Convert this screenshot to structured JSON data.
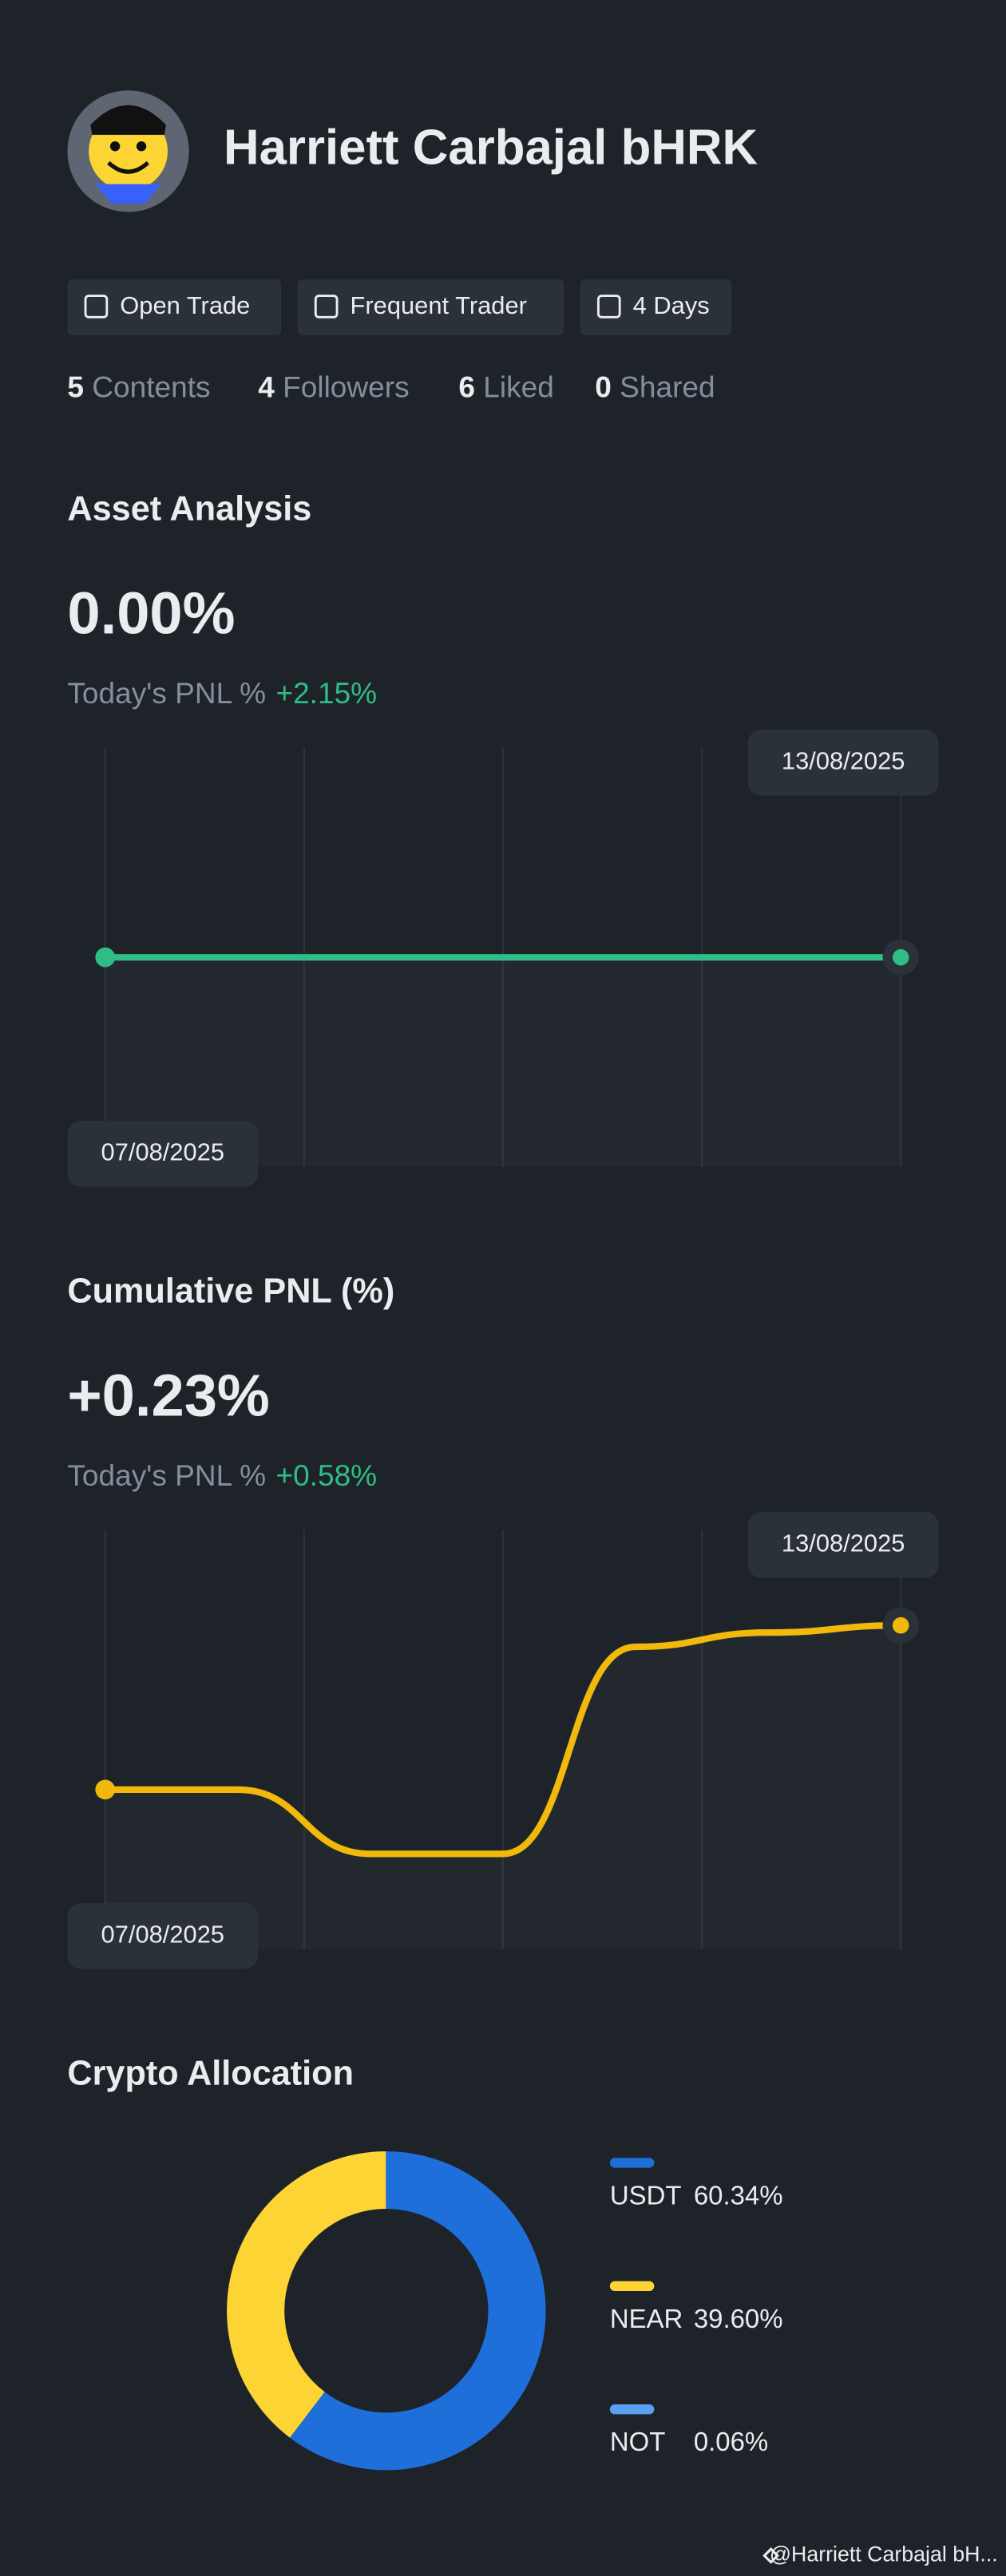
{
  "profile": {
    "name": "Harriett Carbajal bHRK",
    "badges": [
      "Open Trade",
      "Frequent Trader",
      "4 Days"
    ],
    "stats": [
      {
        "count": 5,
        "label": "Contents"
      },
      {
        "count": 4,
        "label": "Followers"
      },
      {
        "count": 6,
        "label": "Liked"
      },
      {
        "count": 0,
        "label": "Shared"
      }
    ]
  },
  "chart_data": [
    {
      "type": "line",
      "title": "Asset Analysis",
      "headline": "0.00%",
      "subtitle": "Today's PNL %",
      "change": "+2.15%",
      "change_color": "#2ebd85",
      "headline_color": "#eaecef",
      "categories": [
        "07/08/2025",
        null,
        null,
        null,
        null,
        null,
        "13/08/2025"
      ],
      "values": [
        0,
        0,
        0,
        0,
        0,
        0,
        0
      ],
      "color": "#2ebd85"
    },
    {
      "type": "line",
      "title": "Cumulative PNL (%)",
      "headline": "+0.23%",
      "subtitle": "Today's PNL %",
      "change": "+0.58%",
      "change_color": "#2ebd85",
      "headline_color": "#2ebd85",
      "categories": [
        "07/08/2025",
        null,
        null,
        null,
        null,
        null,
        "13/08/2025"
      ],
      "values": [
        0,
        0,
        -0.09,
        -0.09,
        0.2,
        0.22,
        0.23
      ],
      "color": "#f0b90b"
    },
    {
      "type": "pie",
      "title": "Crypto Allocation",
      "categories": [
        "USDT",
        "NEAR",
        "NOT"
      ],
      "values": [
        60.34,
        39.6,
        0.06
      ],
      "value_labels": [
        "60.34%",
        "39.60%",
        "0.06%"
      ],
      "colors": [
        "#1e6fd9",
        "#fcd535",
        "#5aa0f0"
      ]
    }
  ],
  "footer": "@Harriett Carbajal bH..."
}
